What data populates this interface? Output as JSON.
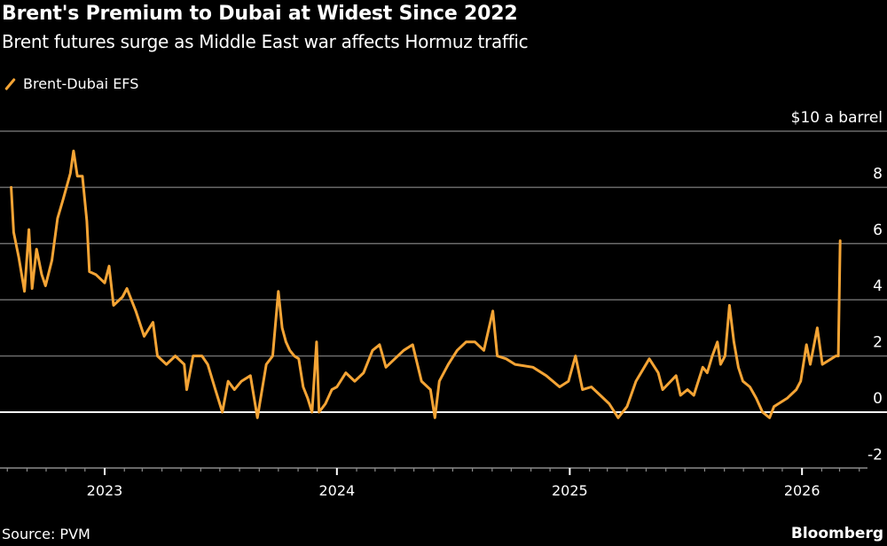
{
  "header": {
    "title": "Brent's Premium to Dubai at Widest Since 2022",
    "subtitle": "Brent futures surge as Middle East war affects Hormuz traffic"
  },
  "footer": {
    "source": "Source: PVM",
    "brand": "Bloomberg"
  },
  "chart_data": {
    "type": "line",
    "title": "Brent's Premium to Dubai at Widest Since 2022",
    "subtitle": "Brent futures surge as Middle East war affects Hormuz traffic",
    "ylabel": "$10 a barrel",
    "ylim": [
      -2,
      10
    ],
    "yticks": [
      -2,
      0,
      2,
      4,
      6,
      8,
      10
    ],
    "ytick_labels": [
      "-2",
      "0",
      "2",
      "4",
      "6",
      "8",
      "$10 a barrel"
    ],
    "xticks": [
      "2023",
      "2024",
      "2025",
      "2026"
    ],
    "xlim": [
      "2022-08-01",
      "2026-04-01"
    ],
    "grid": true,
    "legend": "top-left",
    "series_color": "#f4a435",
    "series": [
      {
        "name": "Brent-Dubai EFS",
        "x": [
          "2022-08-07",
          "2022-08-11",
          "2022-08-19",
          "2022-08-28",
          "2022-09-04",
          "2022-09-09",
          "2022-09-16",
          "2022-09-24",
          "2022-09-30",
          "2022-10-10",
          "2022-10-19",
          "2022-10-28",
          "2022-11-08",
          "2022-11-13",
          "2022-11-19",
          "2022-11-27",
          "2022-12-04",
          "2022-12-08",
          "2022-12-18",
          "2023-01-01",
          "2023-01-08",
          "2023-01-15",
          "2023-01-29",
          "2023-02-05",
          "2023-02-19",
          "2023-03-04",
          "2023-03-18",
          "2023-03-25",
          "2023-04-08",
          "2023-04-22",
          "2023-05-06",
          "2023-05-10",
          "2023-05-20",
          "2023-06-03",
          "2023-06-12",
          "2023-06-24",
          "2023-07-05",
          "2023-07-14",
          "2023-07-24",
          "2023-08-04",
          "2023-08-18",
          "2023-08-29",
          "2023-09-12",
          "2023-09-22",
          "2023-10-01",
          "2023-10-07",
          "2023-10-13",
          "2023-10-19",
          "2023-10-26",
          "2023-11-02",
          "2023-11-09",
          "2023-11-16",
          "2023-11-23",
          "2023-11-30",
          "2023-12-04",
          "2023-12-14",
          "2023-12-24",
          "2024-01-01",
          "2024-01-15",
          "2024-01-29",
          "2024-02-12",
          "2024-02-26",
          "2024-03-08",
          "2024-03-18",
          "2024-04-01",
          "2024-04-15",
          "2024-04-29",
          "2024-05-13",
          "2024-05-27",
          "2024-06-03",
          "2024-06-10",
          "2024-06-24",
          "2024-07-08",
          "2024-07-22",
          "2024-08-05",
          "2024-08-19",
          "2024-09-02",
          "2024-09-09",
          "2024-09-23",
          "2024-10-07",
          "2024-11-04",
          "2024-11-25",
          "2024-12-16",
          "2024-12-30",
          "2025-01-10",
          "2025-01-21",
          "2025-02-04",
          "2025-02-18",
          "2025-03-04",
          "2025-03-18",
          "2025-04-01",
          "2025-04-15",
          "2025-05-06",
          "2025-05-20",
          "2025-05-27",
          "2025-06-17",
          "2025-06-24",
          "2025-07-05",
          "2025-07-15",
          "2025-07-29",
          "2025-08-05",
          "2025-08-13",
          "2025-08-21",
          "2025-08-26",
          "2025-09-02",
          "2025-09-09",
          "2025-09-16",
          "2025-09-23",
          "2025-09-30",
          "2025-10-11",
          "2025-10-21",
          "2025-10-31",
          "2025-11-11",
          "2025-11-18",
          "2025-11-25",
          "2025-12-09",
          "2025-12-23",
          "2025-12-30",
          "2026-01-08",
          "2026-01-14",
          "2026-01-25",
          "2026-02-02",
          "2026-02-16",
          "2026-02-23",
          "2026-02-27",
          "2026-03-02"
        ],
        "values": [
          8.0,
          6.4,
          5.5,
          4.3,
          6.5,
          4.4,
          5.8,
          4.9,
          4.5,
          5.4,
          6.9,
          7.6,
          8.5,
          9.3,
          8.4,
          8.4,
          6.8,
          5.0,
          4.9,
          4.6,
          5.2,
          3.8,
          4.1,
          4.4,
          3.6,
          2.7,
          3.2,
          2.0,
          1.7,
          2.0,
          1.7,
          0.8,
          2.0,
          2.0,
          1.7,
          0.8,
          0.0,
          1.1,
          0.8,
          1.1,
          1.3,
          -0.2,
          1.7,
          2.0,
          4.3,
          3.0,
          2.5,
          2.2,
          2.0,
          1.9,
          0.9,
          0.5,
          0.0,
          2.5,
          0.0,
          0.3,
          0.8,
          0.9,
          1.4,
          1.1,
          1.4,
          2.2,
          2.4,
          1.6,
          1.9,
          2.2,
          2.4,
          1.1,
          0.8,
          -0.2,
          1.1,
          1.7,
          2.2,
          2.5,
          2.5,
          2.2,
          3.6,
          2.0,
          1.9,
          1.7,
          1.6,
          1.3,
          0.9,
          1.1,
          2.0,
          0.8,
          0.9,
          0.6,
          0.3,
          -0.2,
          0.2,
          1.1,
          1.9,
          1.4,
          0.8,
          1.3,
          0.6,
          0.8,
          0.6,
          1.6,
          1.4,
          2.0,
          2.5,
          1.7,
          2.0,
          3.8,
          2.5,
          1.6,
          1.1,
          0.9,
          0.5,
          0.0,
          -0.2,
          0.2,
          0.3,
          0.5,
          0.8,
          1.1,
          2.4,
          1.7,
          3.0,
          1.7,
          1.9,
          2.0,
          2.0,
          6.1
        ]
      }
    ]
  }
}
